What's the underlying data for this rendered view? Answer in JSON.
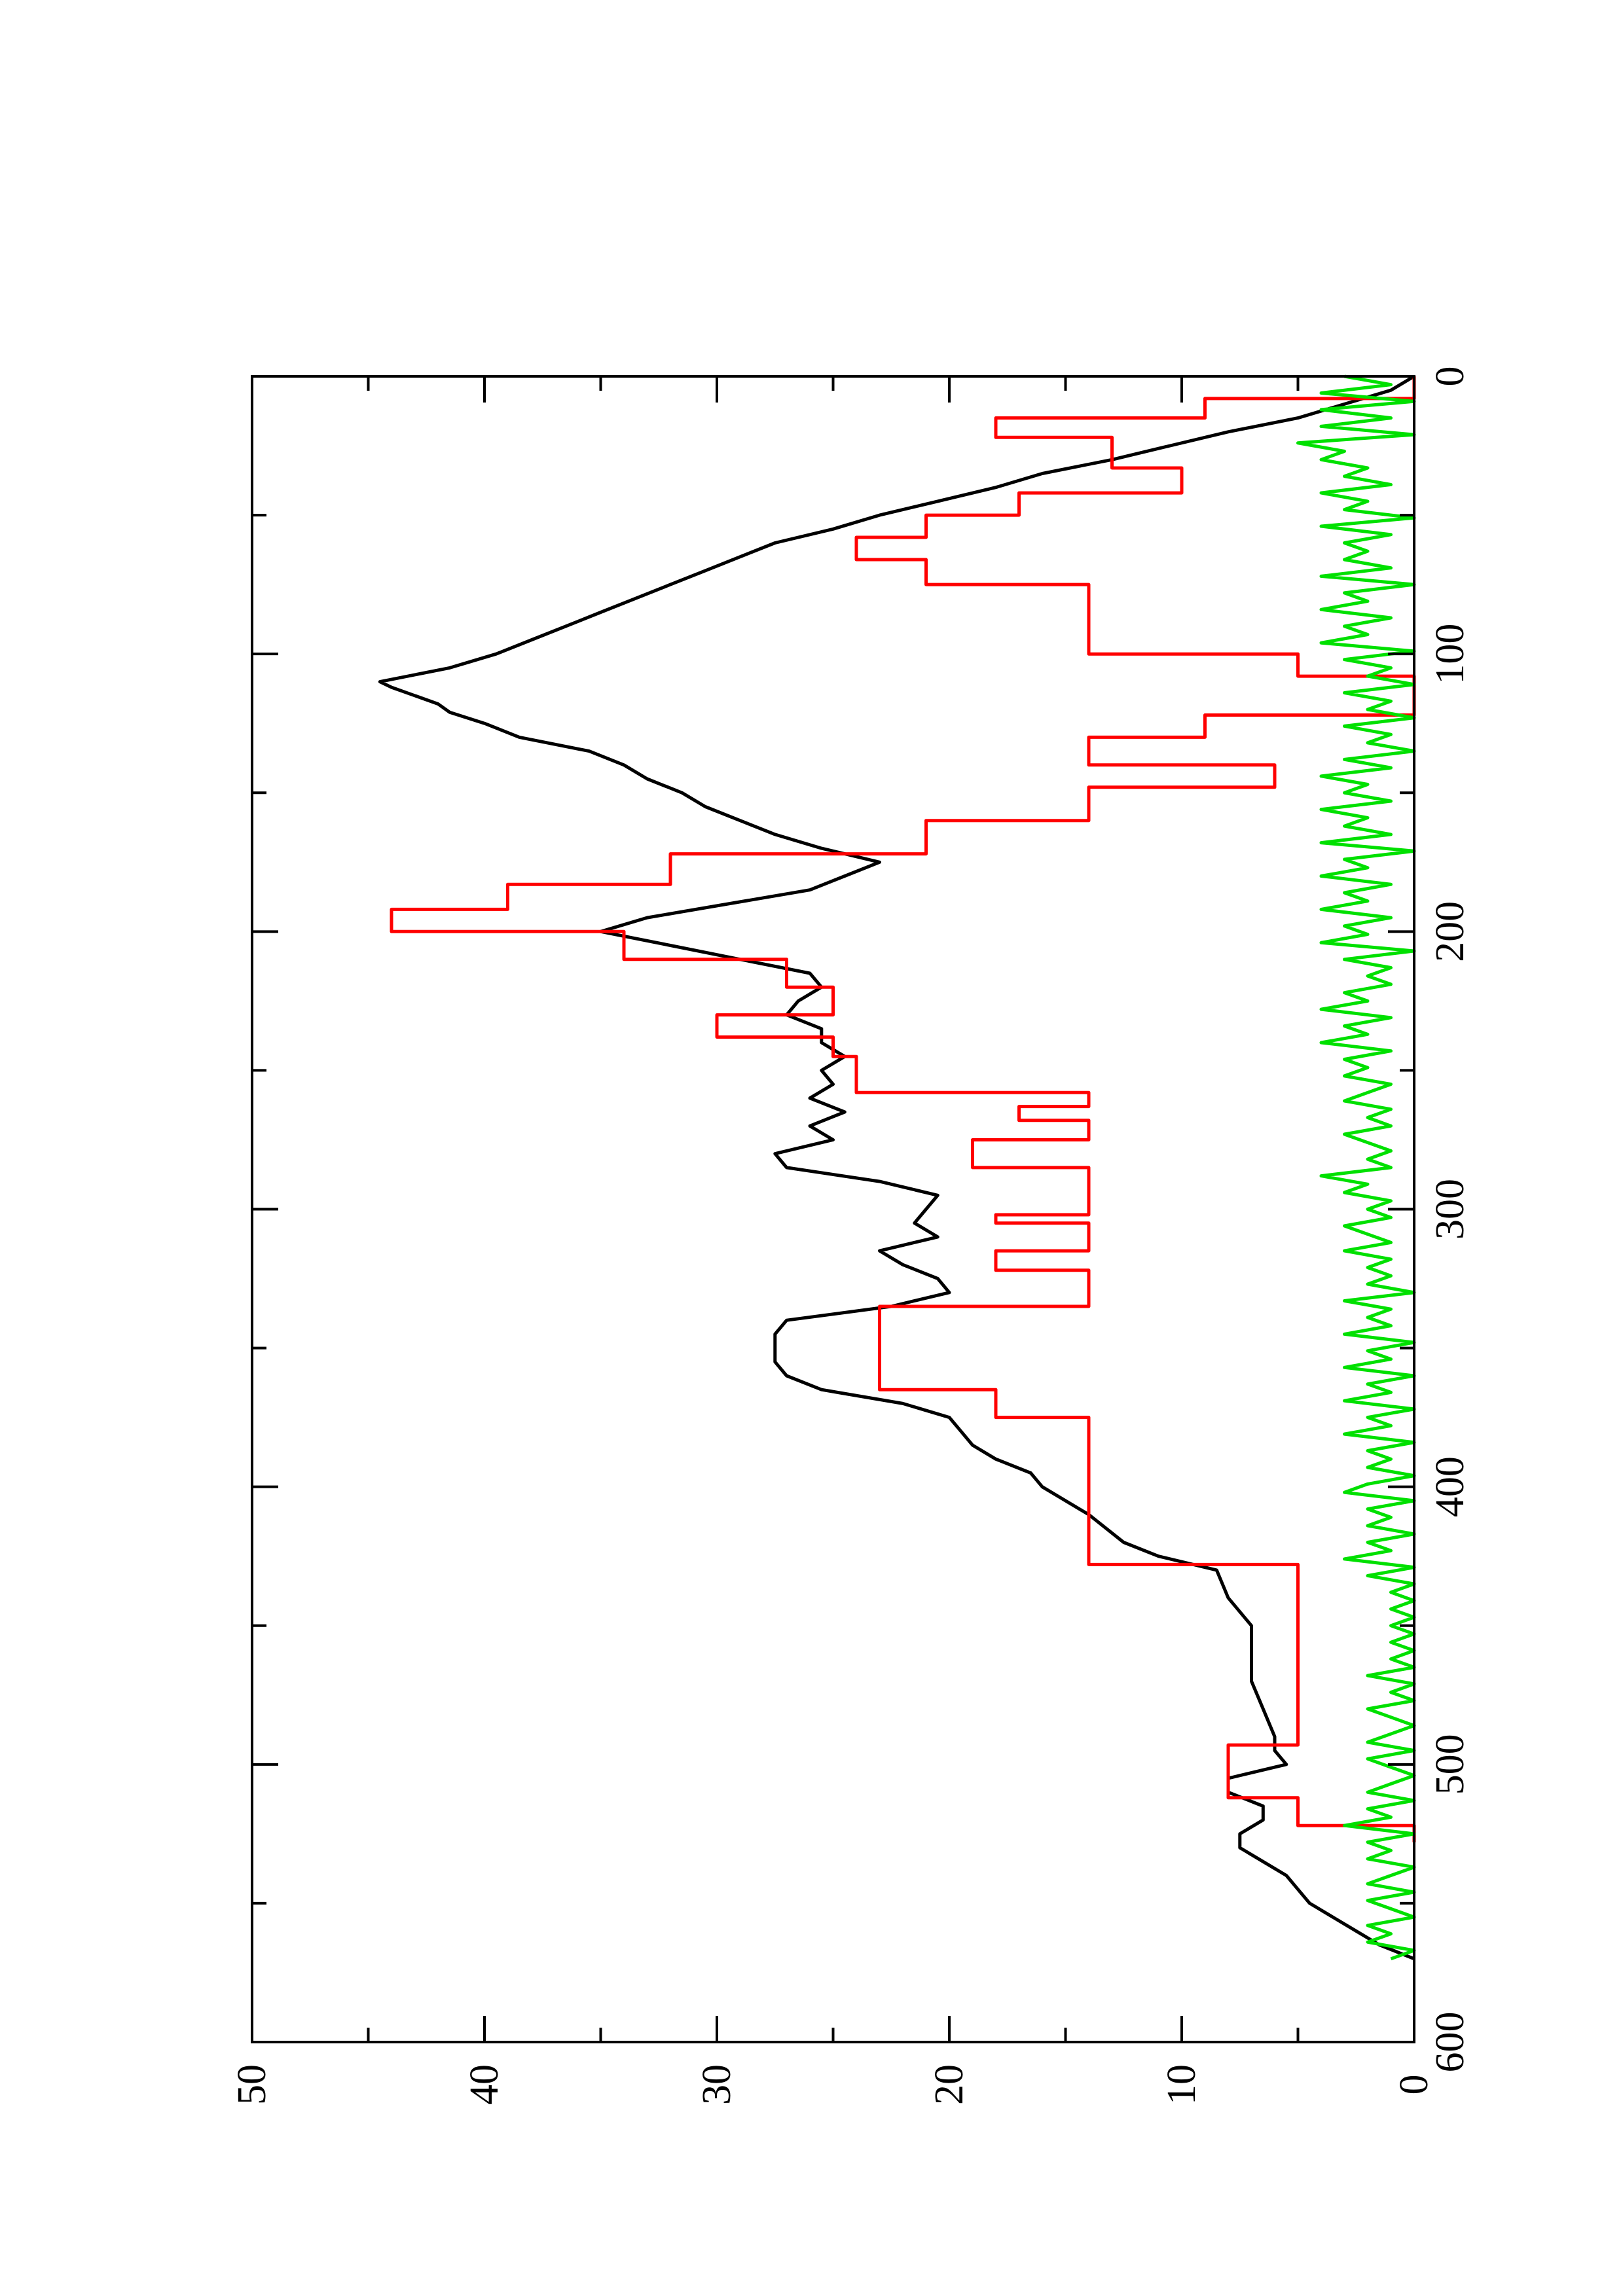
{
  "chart_data": {
    "type": "line",
    "orientation": "rotated 90 degrees counter-clockwise",
    "title": "",
    "xlabel": "",
    "ylabel": "",
    "xlim": [
      0,
      600
    ],
    "ylim": [
      0,
      50
    ],
    "x_ticks": [
      0,
      100,
      200,
      300,
      400,
      500,
      600
    ],
    "x_minor_ticks": [
      50,
      150,
      250,
      350,
      450,
      550
    ],
    "y_ticks": [
      0,
      10,
      20,
      30,
      40,
      50
    ],
    "y_minor_ticks": [
      5,
      15,
      25,
      35,
      45
    ],
    "x_tick_labels": [
      "0",
      "100",
      "200",
      "300",
      "400",
      "500",
      "600"
    ],
    "y_tick_labels": [
      "0",
      "10",
      "20",
      "30",
      "40",
      "50"
    ],
    "grid": false,
    "legend": "none",
    "series": [
      {
        "color": "#000000",
        "step": false,
        "x": [
          0,
          5,
          10,
          15,
          20,
          25,
          30,
          35,
          40,
          45,
          50,
          55,
          60,
          65,
          70,
          75,
          80,
          85,
          90,
          95,
          100,
          105,
          110,
          112,
          115,
          118,
          121,
          125,
          130,
          135,
          140,
          145,
          150,
          155,
          160,
          165,
          170,
          175,
          180,
          185,
          190,
          195,
          200,
          205,
          210,
          215,
          220,
          225,
          230,
          235,
          240,
          245,
          250,
          255,
          260,
          265,
          270,
          275,
          280,
          285,
          290,
          295,
          300,
          305,
          310,
          315,
          320,
          325,
          330,
          335,
          340,
          345,
          350,
          355,
          360,
          365,
          370,
          375,
          380,
          385,
          390,
          395,
          400,
          410,
          420,
          425,
          430,
          440,
          450,
          460,
          470,
          480,
          490,
          495,
          500,
          505,
          510,
          515,
          520,
          525,
          530,
          535,
          540,
          545,
          550,
          555,
          560,
          565,
          570
        ],
        "y": [
          0,
          1,
          3,
          5,
          8,
          10.5,
          13,
          16,
          18,
          20.5,
          23,
          25,
          27.5,
          29,
          30.5,
          32,
          33.5,
          35,
          36.5,
          38,
          39.5,
          41.5,
          44.5,
          44,
          43,
          42,
          41.5,
          40,
          38.5,
          35.5,
          34,
          33,
          31.5,
          30.5,
          29,
          27.5,
          25.5,
          23,
          24.5,
          26,
          29.5,
          33,
          35,
          32,
          29,
          26,
          25.5,
          26.5,
          27,
          25.5,
          25.5,
          24.5,
          25.5,
          25,
          26,
          24.5,
          26,
          25,
          27.5,
          27,
          23,
          20.5,
          21,
          21.5,
          20.5,
          23,
          22,
          20.5,
          20,
          22.5,
          27,
          27.5,
          27.5,
          27.5,
          27,
          25.5,
          22,
          20,
          19.5,
          19,
          18,
          16.5,
          16,
          14,
          12.5,
          11,
          8.5,
          8,
          7,
          7,
          7,
          6.5,
          6,
          6,
          5.5,
          8,
          8,
          6.5,
          6.5,
          7.5,
          7.5,
          6.5,
          5.5,
          5,
          4.5,
          3.5,
          2.5,
          1.5,
          0
        ]
      },
      {
        "color": "#ff0000",
        "step": true,
        "x": [
          0,
          8,
          15,
          22,
          33,
          42,
          50,
          58,
          66,
          75,
          100,
          108,
          112,
          122,
          130,
          140,
          148,
          160,
          172,
          183,
          192,
          200,
          210,
          220,
          230,
          238,
          245,
          258,
          263,
          268,
          275,
          285,
          290,
          302,
          305,
          315,
          322,
          335,
          340,
          350,
          360,
          365,
          375,
          380,
          405,
          420,
          428,
          450,
          470,
          493,
          500,
          512,
          522,
          528
        ],
        "y": [
          0,
          9,
          18,
          13,
          10,
          17,
          21,
          24,
          21,
          14,
          5,
          0,
          0,
          9,
          14,
          6,
          14,
          21,
          32,
          39,
          44,
          34,
          27,
          25,
          30,
          25,
          24,
          14,
          17,
          14,
          19,
          14,
          14,
          18,
          14,
          18,
          14,
          23,
          23,
          23,
          23,
          18,
          14,
          14,
          14,
          14,
          5,
          5,
          5,
          8,
          8,
          5,
          0,
          0
        ]
      },
      {
        "color": "#00e000",
        "step": false,
        "x": [
          0,
          3,
          6,
          9,
          12,
          15,
          18,
          21,
          24,
          27,
          30,
          33,
          36,
          39,
          42,
          45,
          48,
          51,
          54,
          57,
          60,
          63,
          66,
          69,
          72,
          75,
          78,
          81,
          84,
          87,
          90,
          93,
          96,
          99,
          102,
          105,
          108,
          111,
          114,
          117,
          120,
          123,
          126,
          129,
          132,
          135,
          138,
          141,
          144,
          147,
          150,
          153,
          156,
          159,
          162,
          165,
          168,
          171,
          174,
          177,
          180,
          183,
          186,
          189,
          192,
          195,
          198,
          201,
          204,
          207,
          210,
          213,
          216,
          219,
          222,
          225,
          228,
          231,
          234,
          237,
          240,
          243,
          246,
          249,
          252,
          255,
          258,
          261,
          264,
          267,
          270,
          273,
          276,
          279,
          282,
          285,
          288,
          291,
          294,
          297,
          300,
          303,
          306,
          309,
          312,
          315,
          318,
          321,
          324,
          327,
          330,
          333,
          336,
          339,
          342,
          345,
          348,
          351,
          354,
          357,
          360,
          363,
          366,
          369,
          372,
          375,
          378,
          381,
          384,
          387,
          390,
          393,
          396,
          399,
          402,
          405,
          408,
          411,
          414,
          417,
          420,
          423,
          426,
          429,
          432,
          435,
          438,
          441,
          444,
          447,
          450,
          453,
          456,
          459,
          462,
          465,
          468,
          471,
          474,
          477,
          480,
          483,
          486,
          489,
          492,
          495,
          498,
          501,
          504,
          507,
          510,
          513,
          516,
          519,
          522,
          525,
          528,
          531,
          534,
          537,
          540,
          543,
          546,
          549,
          552,
          555,
          558,
          561,
          564,
          567,
          570
        ],
        "y": [
          3,
          1,
          4,
          0,
          4,
          1,
          4,
          0,
          5,
          3,
          4,
          2,
          3,
          1,
          4,
          2,
          3,
          0,
          4,
          1,
          3,
          2,
          3,
          1,
          4,
          0,
          3,
          2,
          4,
          1,
          3,
          2,
          4,
          0,
          3,
          1,
          2,
          0,
          3,
          1,
          2,
          0,
          3,
          1,
          2,
          0,
          3,
          1,
          4,
          2,
          3,
          1,
          4,
          2,
          3,
          1,
          4,
          0,
          3,
          2,
          4,
          1,
          3,
          2,
          4,
          1,
          3,
          2,
          4,
          0,
          3,
          1,
          2,
          1,
          3,
          2,
          4,
          1,
          3,
          2,
          4,
          1,
          3,
          2,
          3,
          1,
          2,
          3,
          1,
          2,
          1,
          3,
          2,
          1,
          2,
          1,
          4,
          2,
          3,
          1,
          2,
          1,
          3,
          2,
          1,
          3,
          1,
          2,
          1,
          2,
          0,
          3,
          1,
          2,
          1,
          3,
          0,
          2,
          1,
          3,
          0,
          2,
          1,
          3,
          0,
          2,
          1,
          3,
          0,
          2,
          1,
          2,
          0,
          2,
          3,
          0,
          2,
          1,
          2,
          0,
          2,
          1,
          3,
          0,
          2,
          0,
          1,
          0,
          1,
          0,
          1,
          0,
          1,
          0,
          1,
          0,
          2,
          0,
          1,
          0,
          2,
          1,
          0,
          1,
          2,
          0,
          2,
          1,
          0,
          1,
          2,
          0,
          2,
          1,
          3,
          0,
          2,
          1,
          2,
          0,
          1,
          2,
          0,
          2,
          1,
          0,
          2,
          1,
          2,
          0,
          1
        ]
      }
    ]
  }
}
